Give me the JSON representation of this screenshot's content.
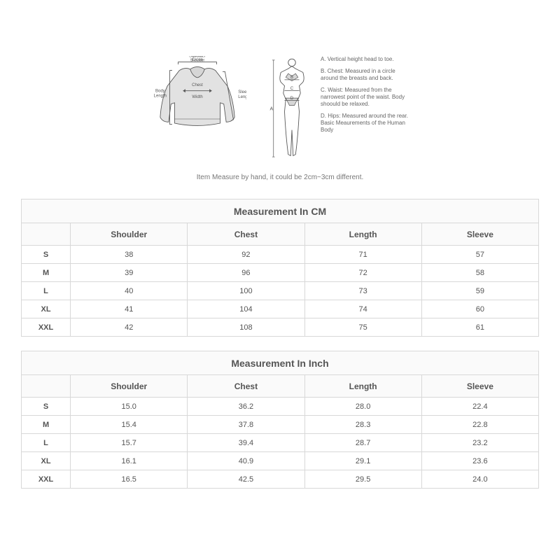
{
  "shirt_labels": {
    "cross_shoulder": "Cross\nShoulder",
    "body_length": "Body\nLength",
    "chest_width": "Chest\nWidth",
    "sleeve_length": "Sleeve\nLength"
  },
  "body_labels": {
    "A": "A",
    "B": "B",
    "C": "C",
    "D": "D"
  },
  "legend": [
    "A. Vertical height head to toe.",
    "B. Chest: Measured in a circle around the breasts and back.",
    "C. Waist: Measured from the narrowest point of the waist. Body shoould be relaxed.",
    "D. Hips: Measured around the rear. Basic Meaurements of the Human Body"
  ],
  "disclaimer": "Item Measure by hand, it could be 2cm~3cm different.",
  "tables": [
    {
      "title": "Measurement In CM",
      "columns": [
        "Shoulder",
        "Chest",
        "Length",
        "Sleeve"
      ],
      "sizes": [
        "S",
        "M",
        "L",
        "XL",
        "XXL"
      ],
      "rows": [
        [
          "38",
          "92",
          "71",
          "57"
        ],
        [
          "39",
          "96",
          "72",
          "58"
        ],
        [
          "40",
          "100",
          "73",
          "59"
        ],
        [
          "41",
          "104",
          "74",
          "60"
        ],
        [
          "42",
          "108",
          "75",
          "61"
        ]
      ]
    },
    {
      "title": "Measurement In Inch",
      "columns": [
        "Shoulder",
        "Chest",
        "Length",
        "Sleeve"
      ],
      "sizes": [
        "S",
        "M",
        "L",
        "XL",
        "XXL"
      ],
      "rows": [
        [
          "15.0",
          "36.2",
          "28.0",
          "22.4"
        ],
        [
          "15.4",
          "37.8",
          "28.3",
          "22.8"
        ],
        [
          "15.7",
          "39.4",
          "28.7",
          "23.2"
        ],
        [
          "16.1",
          "40.9",
          "29.1",
          "23.6"
        ],
        [
          "16.5",
          "42.5",
          "29.5",
          "24.0"
        ]
      ]
    }
  ],
  "colors": {
    "border": "#d8d8d8",
    "header_bg": "#fafafa",
    "text": "#555555",
    "diagram_stroke": "#555555",
    "diagram_fill": "#dddddd"
  }
}
